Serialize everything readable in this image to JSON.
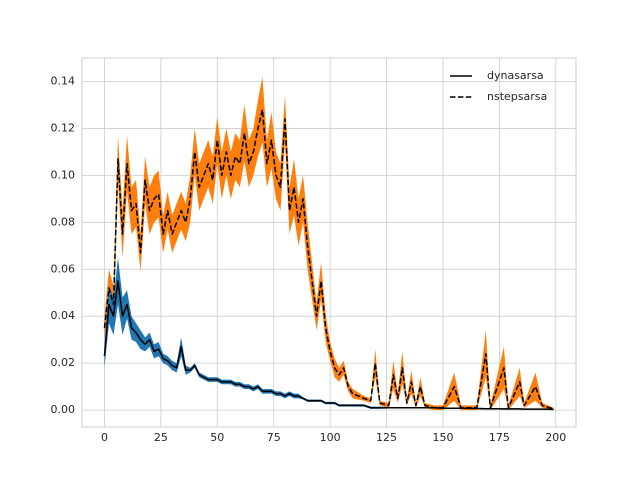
{
  "chart_data": {
    "type": "line",
    "grid": true,
    "legend": "upper right",
    "xlim": [
      -9.95,
      208.95
    ],
    "ylim": [
      -0.0072,
      0.15
    ],
    "xticks": [
      0,
      25,
      50,
      75,
      100,
      125,
      150,
      175,
      200
    ],
    "yticks": [
      {
        "value": 0,
        "label": "0.00"
      },
      {
        "value": 0.02,
        "label": "0.02"
      },
      {
        "value": 0.04,
        "label": "0.04"
      },
      {
        "value": 0.06,
        "label": "0.06"
      },
      {
        "value": 0.08,
        "label": "0.08"
      },
      {
        "value": 0.1,
        "label": "0.10"
      },
      {
        "value": 0.12,
        "label": "0.12"
      },
      {
        "value": 0.14,
        "label": "0.14"
      }
    ],
    "x": [
      0,
      2,
      4,
      6,
      8,
      10,
      12,
      14,
      16,
      18,
      20,
      22,
      24,
      26,
      28,
      30,
      32,
      34,
      36,
      38,
      40,
      42,
      44,
      46,
      48,
      50,
      52,
      54,
      56,
      58,
      60,
      62,
      64,
      66,
      68,
      70,
      72,
      74,
      76,
      78,
      80,
      82,
      84,
      86,
      88,
      90,
      92,
      94,
      96,
      98,
      100,
      102,
      104,
      106,
      108,
      110,
      115,
      118,
      120,
      122,
      126,
      128,
      130,
      132,
      134,
      136,
      138,
      140,
      142,
      146,
      150,
      155,
      158,
      165,
      169,
      171,
      177,
      179,
      184,
      186,
      191,
      194,
      199
    ],
    "series": [
      {
        "name": "dynasarsa",
        "color": "#000000",
        "band_color": "#1f77b4",
        "dashed": false,
        "values": [
          0.023,
          0.045,
          0.04,
          0.055,
          0.04,
          0.045,
          0.035,
          0.033,
          0.03,
          0.028,
          0.03,
          0.025,
          0.026,
          0.022,
          0.021,
          0.019,
          0.018,
          0.027,
          0.017,
          0.017,
          0.019,
          0.015,
          0.014,
          0.013,
          0.013,
          0.013,
          0.012,
          0.012,
          0.012,
          0.011,
          0.011,
          0.01,
          0.01,
          0.009,
          0.01,
          0.008,
          0.008,
          0.008,
          0.007,
          0.007,
          0.006,
          0.007,
          0.006,
          0.006,
          0.005,
          0.004,
          0.004,
          0.004,
          0.004,
          0.003,
          0.003,
          0.003,
          0.002,
          0.002,
          0.002,
          0.002,
          0.002,
          0.001,
          0.001,
          0.001,
          0.001,
          0.001,
          0.001,
          0.001,
          0.001,
          0.001,
          0.001,
          0.001,
          0.001,
          0.001,
          0.0008,
          0.0008,
          0.0008,
          0.0007,
          0.0006,
          0.0006,
          0.0005,
          0.0005,
          0.0005,
          0.0004,
          0.0004,
          0.0004,
          0.0003
        ],
        "errors": [
          0.005,
          0.008,
          0.008,
          0.01,
          0.008,
          0.006,
          0.005,
          0.004,
          0.004,
          0.003,
          0.003,
          0.003,
          0.003,
          0.002,
          0.002,
          0.002,
          0.002,
          0.004,
          0.002,
          0.001,
          0.001,
          0.001,
          0.001,
          0.001,
          0.001,
          0.001,
          0.001,
          0.001,
          0.001,
          0.001,
          0.001,
          0.001,
          0.001,
          0.001,
          0.001,
          0.001,
          0.001,
          0.001,
          0.001,
          0.001,
          0.001,
          0.001,
          0.001,
          0.001,
          0.0005,
          0.0005,
          0.0005,
          0.0005,
          0.0005,
          0.0005,
          0.0005,
          0.0005,
          0.0005,
          0.0005,
          0.0005,
          0.0005,
          0.0005,
          0.0005,
          0.0005,
          0.0005,
          0.0003,
          0.0003,
          0.0003,
          0.0003,
          0.0003,
          0.0003,
          0.0003,
          0.0003,
          0.0003,
          0.0003,
          0.0003,
          0.0003,
          0.0003,
          0.0003,
          0.0003,
          0.0003,
          0.0003,
          0.0003,
          0.0003,
          0.0003,
          0.0003,
          0.0003,
          0.0003
        ]
      },
      {
        "name": "nstepsarsa",
        "color": "#000000",
        "band_color": "#ff7f0e",
        "dashed": true,
        "values": [
          0.035,
          0.052,
          0.045,
          0.107,
          0.075,
          0.105,
          0.085,
          0.088,
          0.067,
          0.098,
          0.085,
          0.09,
          0.092,
          0.075,
          0.085,
          0.075,
          0.08,
          0.085,
          0.08,
          0.09,
          0.11,
          0.095,
          0.1,
          0.105,
          0.098,
          0.115,
          0.1,
          0.11,
          0.1,
          0.108,
          0.105,
          0.118,
          0.105,
          0.11,
          0.12,
          0.128,
          0.105,
          0.115,
          0.1,
          0.095,
          0.124,
          0.085,
          0.095,
          0.08,
          0.09,
          0.07,
          0.055,
          0.04,
          0.055,
          0.035,
          0.025,
          0.018,
          0.015,
          0.018,
          0.01,
          0.007,
          0.005,
          0.004,
          0.02,
          0.003,
          0.002,
          0.015,
          0.005,
          0.018,
          0.003,
          0.012,
          0.002,
          0.01,
          0.002,
          0.001,
          0.001,
          0.01,
          0.001,
          0.001,
          0.024,
          0.001,
          0.018,
          0.001,
          0.012,
          0.002,
          0.01,
          0.002,
          0.0005
        ],
        "errors": [
          0.005,
          0.008,
          0.008,
          0.01,
          0.01,
          0.012,
          0.01,
          0.01,
          0.008,
          0.01,
          0.01,
          0.01,
          0.01,
          0.008,
          0.008,
          0.008,
          0.008,
          0.008,
          0.008,
          0.01,
          0.01,
          0.01,
          0.01,
          0.01,
          0.01,
          0.01,
          0.01,
          0.01,
          0.01,
          0.01,
          0.01,
          0.012,
          0.01,
          0.01,
          0.012,
          0.014,
          0.01,
          0.012,
          0.01,
          0.01,
          0.01,
          0.01,
          0.012,
          0.01,
          0.01,
          0.01,
          0.008,
          0.006,
          0.008,
          0.006,
          0.004,
          0.004,
          0.003,
          0.003,
          0.002,
          0.002,
          0.001,
          0.001,
          0.006,
          0.001,
          0.001,
          0.006,
          0.002,
          0.007,
          0.001,
          0.005,
          0.001,
          0.004,
          0.001,
          0.001,
          0.001,
          0.006,
          0.001,
          0.001,
          0.01,
          0.001,
          0.009,
          0.001,
          0.006,
          0.001,
          0.006,
          0.001,
          0.0005
        ]
      }
    ]
  }
}
